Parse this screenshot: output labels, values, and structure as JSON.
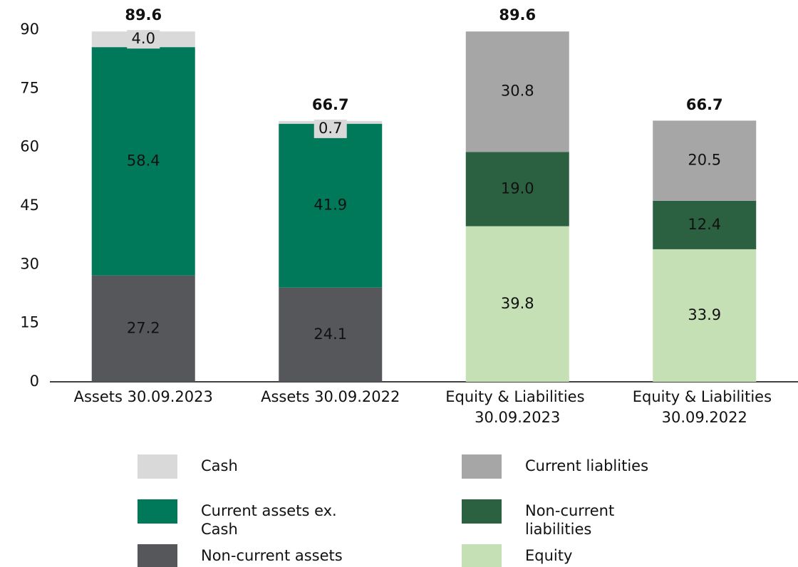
{
  "chart_data": {
    "type": "stacked_bar",
    "categories": [
      "Assets 30.09.2023",
      "Assets 30.09.2022",
      "Equity & Liabilities 30.09.2023",
      "Equity & Liabilities 30.09.2022"
    ],
    "series": [
      {
        "name": "Non-current assets",
        "color": "#55575b",
        "label_color": "#ffffff",
        "values": [
          27.2,
          24.1,
          null,
          null
        ],
        "value_labels": [
          "27.2",
          "24.1",
          null,
          null
        ]
      },
      {
        "name": "Current assets ex. Cash",
        "color": "#00785a",
        "label_color": "#ffffff",
        "values": [
          58.4,
          41.9,
          null,
          null
        ],
        "value_labels": [
          "58.4",
          "41.9",
          null,
          null
        ]
      },
      {
        "name": "Cash",
        "color": "#d9d9d9",
        "label_color": "#222222",
        "values": [
          4.0,
          0.7,
          null,
          null
        ],
        "value_labels": [
          "4.0",
          "0.7",
          null,
          null
        ]
      },
      {
        "name": "Equity",
        "color": "#c5e0b4",
        "label_color": "#222222",
        "values": [
          null,
          null,
          39.8,
          33.9
        ],
        "value_labels": [
          null,
          null,
          "39.8",
          "33.9"
        ]
      },
      {
        "name": "Non-current liabilities",
        "color": "#2b6140",
        "label_color": "#ffffff",
        "values": [
          null,
          null,
          19.0,
          12.4
        ],
        "value_labels": [
          null,
          null,
          "19.0",
          "12.4"
        ]
      },
      {
        "name": "Current liablities",
        "color": "#a6a6a6",
        "label_color": "#222222",
        "values": [
          null,
          null,
          30.8,
          20.5
        ],
        "value_labels": [
          null,
          null,
          "30.8",
          "20.5"
        ]
      }
    ],
    "totals": [
      89.6,
      66.7,
      89.6,
      66.7
    ],
    "ylim": [
      0,
      90
    ],
    "yticks": [
      0,
      15,
      30,
      45,
      60,
      75,
      90
    ],
    "grid": false
  }
}
